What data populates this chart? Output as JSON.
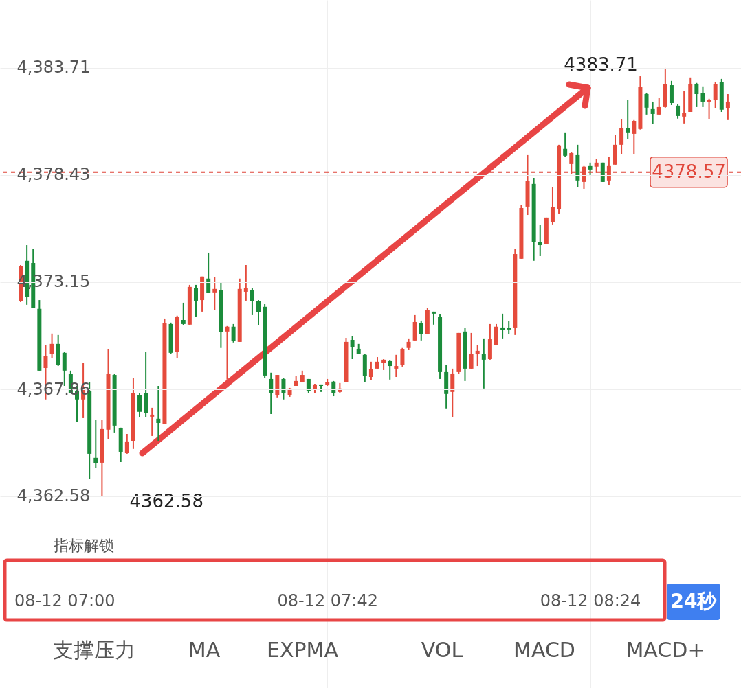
{
  "chart_data": {
    "type": "candlestick",
    "categories": [
      null,
      null,
      null,
      null,
      null,
      null,
      null,
      "08-12 07:00",
      null,
      null,
      null,
      null,
      null,
      null,
      null,
      null,
      null,
      null,
      null,
      null,
      null,
      null,
      null,
      null,
      null,
      null,
      null,
      null,
      null,
      null,
      null,
      null,
      null,
      null,
      null,
      null,
      null,
      null,
      null,
      null,
      null,
      null,
      null,
      null,
      null,
      null,
      null,
      null,
      null,
      "08-12 07:42",
      null,
      null,
      null,
      null,
      null,
      null,
      null,
      null,
      null,
      null,
      null,
      null,
      null,
      null,
      null,
      null,
      null,
      null,
      null,
      null,
      null,
      null,
      null,
      null,
      null,
      null,
      null,
      null,
      null,
      null,
      null,
      null,
      null,
      null,
      null,
      null,
      null,
      null,
      null,
      null,
      null,
      "08-12 08:24",
      null,
      null,
      null,
      null,
      null,
      null,
      null,
      null,
      null,
      null,
      null,
      null,
      null,
      null,
      null,
      null,
      null,
      null,
      null,
      null,
      null,
      null
    ],
    "ohlc": [
      [
        4372.23,
        4373.99,
        4372.16,
        4373.92
      ],
      [
        4374.2,
        4374.97,
        4372.03,
        4372.43
      ],
      [
        4374.09,
        4374.8,
        4371.86,
        4371.86
      ],
      [
        4371.83,
        4372.26,
        4368.78,
        4368.78
      ],
      [
        4368.91,
        4370.06,
        4367.36,
        4369.52
      ],
      [
        4369.62,
        4370.61,
        4369.39,
        4370.1
      ],
      [
        4370.1,
        4370.54,
        4369.01,
        4369.05
      ],
      [
        4369.66,
        4369.69,
        4368.03,
        4368.78
      ],
      [
        4368.61,
        4368.78,
        4367.66,
        4367.69
      ],
      [
        4367.76,
        4368.03,
        4366.24,
        4367.36
      ],
      [
        4367.36,
        4369.15,
        4366.44,
        4367.93
      ],
      [
        4367.76,
        4368.2,
        4363.43,
        4364.68
      ],
      [
        4364.48,
        4366.34,
        4363.97,
        4364.21
      ],
      [
        4364.24,
        4366.34,
        4362.58,
        4365.9
      ],
      [
        4365.87,
        4369.83,
        4365.39,
        4368.64
      ],
      [
        4368.57,
        4368.61,
        4365.73,
        4366.07
      ],
      [
        4365.93,
        4365.97,
        4364.27,
        4364.78
      ],
      [
        4364.71,
        4365.66,
        4364.68,
        4365.29
      ],
      [
        4365.32,
        4368.41,
        4364.92,
        4367.66
      ],
      [
        4367.59,
        4367.69,
        4366.48,
        4366.75
      ],
      [
        4367.66,
        4369.69,
        4366.48,
        4366.68
      ],
      [
        4366.51,
        4366.95,
        4365.56,
        4366.61
      ],
      [
        4366.41,
        4368.03,
        4365.32,
        4366.2
      ],
      [
        4366.17,
        4371.35,
        4366.17,
        4371.11
      ],
      [
        4371.08,
        4371.15,
        4369.59,
        4369.66
      ],
      [
        4369.69,
        4371.49,
        4369.39,
        4371.45
      ],
      [
        4371.28,
        4372.13,
        4371.01,
        4371.08
      ],
      [
        4371.05,
        4373.01,
        4371.05,
        4372.91
      ],
      [
        4372.84,
        4373.01,
        4371.45,
        4372.23
      ],
      [
        4372.26,
        4373.42,
        4371.69,
        4373.42
      ],
      [
        4373.32,
        4374.6,
        4372.6,
        4372.6
      ],
      [
        4372.64,
        4373.38,
        4371.76,
        4372.81
      ],
      [
        4372.74,
        4373.15,
        4369.9,
        4370.67
      ],
      [
        4370.71,
        4370.98,
        4368.34,
        4370.95
      ],
      [
        4370.95,
        4371.08,
        4370.17,
        4370.23
      ],
      [
        4370.2,
        4373.32,
        4370.2,
        4372.81
      ],
      [
        4372.67,
        4373.99,
        4372.23,
        4372.84
      ],
      [
        4372.77,
        4372.87,
        4371.52,
        4372.2
      ],
      [
        4372.2,
        4372.26,
        4371.01,
        4371.66
      ],
      [
        4371.93,
        4372.06,
        4368.41,
        4368.54
      ],
      [
        4368.37,
        4368.68,
        4366.64,
        4367.69
      ],
      [
        4367.59,
        4368.57,
        4367.46,
        4368.57
      ],
      [
        4368.37,
        4368.41,
        4367.36,
        4367.69
      ],
      [
        4367.59,
        4367.93,
        4367.49,
        4367.9
      ],
      [
        4368.03,
        4368.51,
        4368.03,
        4368.27
      ],
      [
        4368.2,
        4368.78,
        4368.2,
        4368.57
      ],
      [
        4368.37,
        4368.37,
        4367.66,
        4367.76
      ],
      [
        4367.83,
        4368.13,
        4367.69,
        4368.1
      ],
      [
        4368.1,
        4368.1,
        4367.73,
        4368.03
      ],
      [
        4368.07,
        4368.37,
        4368.03,
        4368.2
      ],
      [
        4368.24,
        4368.27,
        4367.52,
        4367.69
      ],
      [
        4367.73,
        4368.17,
        4367.69,
        4367.9
      ],
      [
        4368.2,
        4370.4,
        4368.2,
        4370.2
      ],
      [
        4370.3,
        4370.47,
        4369.35,
        4369.93
      ],
      [
        4369.86,
        4370.1,
        4369.62,
        4369.62
      ],
      [
        4369.56,
        4369.59,
        4368.2,
        4368.51
      ],
      [
        4368.47,
        4369.22,
        4368.3,
        4368.85
      ],
      [
        4368.88,
        4369.45,
        4368.88,
        4369.22
      ],
      [
        4369.18,
        4369.35,
        4368.81,
        4369.32
      ],
      [
        4369.25,
        4369.29,
        4368.34,
        4369.01
      ],
      [
        4368.88,
        4369.56,
        4368.47,
        4369.01
      ],
      [
        4369.08,
        4369.9,
        4368.98,
        4369.83
      ],
      [
        4369.9,
        4370.37,
        4369.79,
        4370.2
      ],
      [
        4370.27,
        4371.52,
        4370.27,
        4371.18
      ],
      [
        4371.11,
        4371.25,
        4370.27,
        4370.57
      ],
      [
        4370.57,
        4371.89,
        4370.57,
        4371.76
      ],
      [
        4371.69,
        4371.69,
        4371.05,
        4371.59
      ],
      [
        4371.42,
        4371.55,
        4368.37,
        4368.71
      ],
      [
        4368.71,
        4369.08,
        4366.92,
        4367.63
      ],
      [
        4367.73,
        4368.88,
        4366.48,
        4368.64
      ],
      [
        4368.71,
        4370.64,
        4368.61,
        4370.64
      ],
      [
        4370.71,
        4370.88,
        4368.27,
        4368.88
      ],
      [
        4368.88,
        4370.64,
        4368.85,
        4369.59
      ],
      [
        4369.59,
        4370.03,
        4369.01,
        4369.76
      ],
      [
        4369.59,
        4370.37,
        4367.9,
        4369.32
      ],
      [
        4369.35,
        4371.08,
        4369.32,
        4370.33
      ],
      [
        4370.06,
        4371.08,
        4370.06,
        4370.95
      ],
      [
        4370.91,
        4371.59,
        4370.37,
        4370.78
      ],
      [
        4370.88,
        4371.22,
        4370.57,
        4370.81
      ],
      [
        4370.91,
        4374.77,
        4370.54,
        4374.53
      ],
      [
        4374.3,
        4376.97,
        4374.3,
        4376.8
      ],
      [
        4376.87,
        4379.41,
        4376.46,
        4378.12
      ],
      [
        4377.99,
        4378.29,
        4374.2,
        4375.14
      ],
      [
        4375.14,
        4375.96,
        4374.43,
        4374.97
      ],
      [
        4375.01,
        4376.33,
        4375.01,
        4376.33
      ],
      [
        4376.09,
        4377.85,
        4375.99,
        4376.84
      ],
      [
        4376.74,
        4379.92,
        4376.53,
        4379.89
      ],
      [
        4379.72,
        4380.53,
        4379.34,
        4379.38
      ],
      [
        4378.97,
        4379.55,
        4378.46,
        4379.51
      ],
      [
        4379.41,
        4379.92,
        4377.82,
        4378.16
      ],
      [
        4378.09,
        4378.87,
        4377.75,
        4378.84
      ],
      [
        4378.87,
        4379.04,
        4378.43,
        4378.7
      ],
      [
        4378.84,
        4379.21,
        4378.53,
        4379.04
      ],
      [
        4379.04,
        4379.04,
        4378.09,
        4378.09
      ],
      [
        4378.16,
        4379.34,
        4377.92,
        4378.87
      ],
      [
        4378.94,
        4380.39,
        4378.94,
        4379.92
      ],
      [
        4379.92,
        4381.17,
        4379.44,
        4380.73
      ],
      [
        4380.73,
        4382.12,
        4380.22,
        4380.53
      ],
      [
        4380.46,
        4381.14,
        4379.44,
        4381.1
      ],
      [
        4380.7,
        4383.3,
        4380.67,
        4382.76
      ],
      [
        4382.42,
        4382.49,
        4381.41,
        4381.75
      ],
      [
        4381.68,
        4382.05,
        4380.93,
        4381.44
      ],
      [
        4381.41,
        4382.22,
        4381.37,
        4381.78
      ],
      [
        4381.78,
        4383.71,
        4381.75,
        4382.9
      ],
      [
        4382.86,
        4383.07,
        4381.88,
        4381.98
      ],
      [
        4381.85,
        4381.92,
        4381.21,
        4381.34
      ],
      [
        4381.31,
        4382.56,
        4380.97,
        4381.48
      ],
      [
        4381.54,
        4383.24,
        4381.54,
        4382.93
      ],
      [
        4382.93,
        4382.97,
        4381.78,
        4382.42
      ],
      [
        4382.46,
        4382.8,
        4381.78,
        4382.05
      ],
      [
        4382.05,
        4382.19,
        4381.17,
        4382.15
      ],
      [
        4382.15,
        4383.0,
        4381.71,
        4382.9
      ],
      [
        4383.0,
        4383.17,
        4381.54,
        4381.65
      ],
      [
        4381.71,
        4382.42,
        4381.14,
        4382.05
      ]
    ],
    "colors": [
      "#e54b3c",
      "#1b8c3b",
      "#1b8c3b",
      "#1b8c3b",
      "#e54b3c",
      "#e54b3c",
      "#1b8c3b",
      "#1b8c3b",
      "#1b8c3b",
      "#1b8c3b",
      "#e54b3c",
      "#1b8c3b",
      "#1b8c3b",
      "#e54b3c",
      "#e54b3c",
      "#1b8c3b",
      "#1b8c3b",
      "#e54b3c",
      "#e54b3c",
      "#1b8c3b",
      "#1b8c3b",
      "#e54b3c",
      "#1b8c3b",
      "#e54b3c",
      "#1b8c3b",
      "#e54b3c",
      "#1b8c3b",
      "#e54b3c",
      "#1b8c3b",
      "#e54b3c",
      "#1b8c3b",
      "#e54b3c",
      "#1b8c3b",
      "#e54b3c",
      "#1b8c3b",
      "#e54b3c",
      "#e54b3c",
      "#1b8c3b",
      "#1b8c3b",
      "#1b8c3b",
      "#1b8c3b",
      "#e54b3c",
      "#1b8c3b",
      "#e54b3c",
      "#e54b3c",
      "#e54b3c",
      "#1b8c3b",
      "#e54b3c",
      "#1b8c3b",
      "#e54b3c",
      "#1b8c3b",
      "#e54b3c",
      "#e54b3c",
      "#1b8c3b",
      "#1b8c3b",
      "#1b8c3b",
      "#e54b3c",
      "#e54b3c",
      "#e54b3c",
      "#1b8c3b",
      "#e54b3c",
      "#e54b3c",
      "#e54b3c",
      "#e54b3c",
      "#1b8c3b",
      "#e54b3c",
      "#1b8c3b",
      "#1b8c3b",
      "#1b8c3b",
      "#e54b3c",
      "#e54b3c",
      "#1b8c3b",
      "#e54b3c",
      "#e54b3c",
      "#1b8c3b",
      "#e54b3c",
      "#e54b3c",
      "#1b8c3b",
      "#1b8c3b",
      "#e54b3c",
      "#e54b3c",
      "#e54b3c",
      "#1b8c3b",
      "#1b8c3b",
      "#e54b3c",
      "#e54b3c",
      "#e54b3c",
      "#1b8c3b",
      "#e54b3c",
      "#1b8c3b",
      "#e54b3c",
      "#1b8c3b",
      "#e54b3c",
      "#1b8c3b",
      "#e54b3c",
      "#e54b3c",
      "#e54b3c",
      "#1b8c3b",
      "#e54b3c",
      "#e54b3c",
      "#1b8c3b",
      "#1b8c3b",
      "#e54b3c",
      "#e54b3c",
      "#1b8c3b",
      "#1b8c3b",
      "#e54b3c",
      "#e54b3c",
      "#1b8c3b",
      "#1b8c3b",
      "#e54b3c",
      "#e54b3c",
      "#1b8c3b",
      "#e54b3c"
    ],
    "ylim": [
      4353.13,
      4387.06
    ],
    "yticks": [
      {
        "value": 4362.58,
        "label": "4,362.58"
      },
      {
        "value": 4367.86,
        "label": "4,367.86"
      },
      {
        "value": 4373.15,
        "label": "4,373.15"
      },
      {
        "value": 4378.43,
        "label": "4,378.43"
      },
      {
        "value": 4383.71,
        "label": "4,383.71"
      }
    ],
    "ref_lines": [
      {
        "axis": "y",
        "value": 4378.57,
        "label": "4378.57",
        "color": "#e0463a",
        "line_style": "dashed"
      }
    ],
    "grid": true,
    "annotations": [
      "4383.71",
      "4362.58",
      "指标解锁",
      "24秒",
      "支撑压力",
      "MA",
      "EXPMA",
      "VOL",
      "MACD",
      "MACD+"
    ]
  }
}
